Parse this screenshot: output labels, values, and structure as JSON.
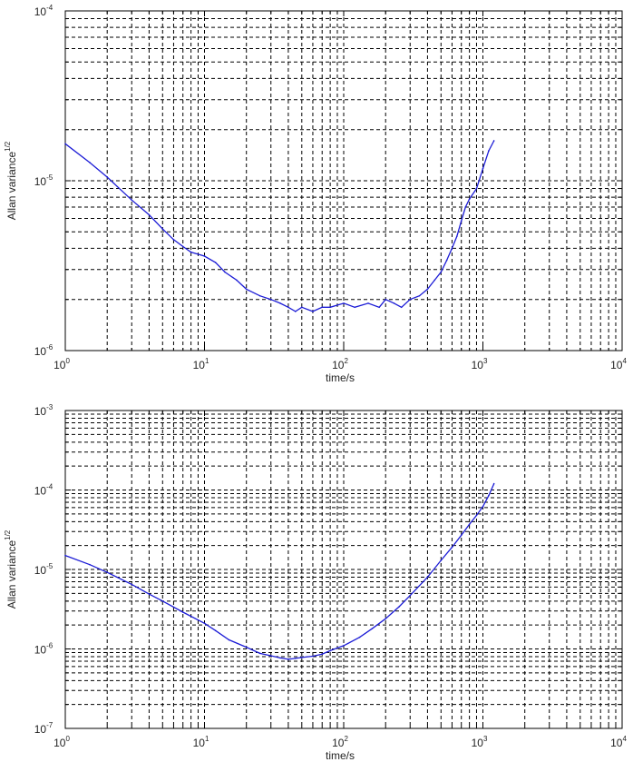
{
  "chart_data": [
    {
      "type": "line",
      "title": "",
      "xlabel": "time/s",
      "ylabel_main": "Allan variance",
      "ylabel_sup": "1/2",
      "x_scale": "log",
      "y_scale": "log",
      "xlim": [
        1,
        10000
      ],
      "ylim": [
        1e-06,
        0.0001
      ],
      "grid": true,
      "x_ticks": [
        {
          "value": 1,
          "base": "10",
          "exp": "0"
        },
        {
          "value": 10,
          "base": "10",
          "exp": "1"
        },
        {
          "value": 100,
          "base": "10",
          "exp": "2"
        },
        {
          "value": 1000,
          "base": "10",
          "exp": "3"
        },
        {
          "value": 10000,
          "base": "10",
          "exp": "4"
        }
      ],
      "y_ticks": [
        {
          "value": 1e-06,
          "base": "10",
          "exp": "-6"
        },
        {
          "value": 1e-05,
          "base": "10",
          "exp": "-5"
        },
        {
          "value": 0.0001,
          "base": "10",
          "exp": "-4"
        }
      ],
      "series": [
        {
          "color": "#1c1cd6",
          "x": [
            1,
            1.5,
            2,
            3,
            4,
            5,
            6,
            7,
            8,
            10,
            12,
            14,
            17,
            20,
            25,
            30,
            35,
            40,
            45,
            50,
            60,
            70,
            80,
            100,
            120,
            150,
            180,
            200,
            230,
            260,
            300,
            350,
            400,
            450,
            500,
            550,
            600,
            650,
            700,
            750,
            800,
            900,
            1000,
            1100,
            1200
          ],
          "y": [
            1.65e-05,
            1.28e-05,
            1.05e-05,
            7.7e-06,
            6.3e-06,
            5.2e-06,
            4.5e-06,
            4.1e-06,
            3.8e-06,
            3.6e-06,
            3.3e-06,
            2.9e-06,
            2.6e-06,
            2.3e-06,
            2.1e-06,
            2e-06,
            1.9e-06,
            1.8e-06,
            1.7e-06,
            1.8e-06,
            1.7e-06,
            1.8e-06,
            1.8e-06,
            1.9e-06,
            1.8e-06,
            1.9e-06,
            1.8e-06,
            2e-06,
            1.9e-06,
            1.8e-06,
            2e-06,
            2.1e-06,
            2.3e-06,
            2.6e-06,
            2.9e-06,
            3.4e-06,
            4e-06,
            4.7e-06,
            5.8e-06,
            7e-06,
            7.8e-06,
            9e-06,
            1.18e-05,
            1.5e-05,
            1.72e-05
          ]
        }
      ]
    },
    {
      "type": "line",
      "title": "",
      "xlabel": "time/s",
      "ylabel_main": "Allan variance",
      "ylabel_sup": "1/2",
      "x_scale": "log",
      "y_scale": "log",
      "xlim": [
        1,
        10000
      ],
      "ylim": [
        1e-07,
        0.001
      ],
      "grid": true,
      "x_ticks": [
        {
          "value": 1,
          "base": "10",
          "exp": "0"
        },
        {
          "value": 10,
          "base": "10",
          "exp": "1"
        },
        {
          "value": 100,
          "base": "10",
          "exp": "2"
        },
        {
          "value": 1000,
          "base": "10",
          "exp": "3"
        },
        {
          "value": 10000,
          "base": "10",
          "exp": "4"
        }
      ],
      "y_ticks": [
        {
          "value": 1e-07,
          "base": "10",
          "exp": "-7"
        },
        {
          "value": 1e-06,
          "base": "10",
          "exp": "-6"
        },
        {
          "value": 1e-05,
          "base": "10",
          "exp": "-5"
        },
        {
          "value": 0.0001,
          "base": "10",
          "exp": "-4"
        },
        {
          "value": 0.001,
          "base": "10",
          "exp": "-3"
        }
      ],
      "series": [
        {
          "color": "#1c1cd6",
          "x": [
            1,
            1.5,
            2,
            3,
            4,
            5,
            7,
            10,
            12,
            15,
            20,
            25,
            30,
            35,
            40,
            45,
            50,
            60,
            70,
            80,
            100,
            130,
            160,
            200,
            250,
            300,
            400,
            500,
            600,
            700,
            800,
            900,
            1000,
            1100,
            1200
          ],
          "y": [
            1.5e-05,
            1.15e-05,
            9.2e-06,
            6.5e-06,
            4.9e-06,
            4e-06,
            2.9e-06,
            2.1e-06,
            1.7e-06,
            1.3e-06,
            1.05e-06,
            8.8e-07,
            8.2e-07,
            7.7e-07,
            7.4e-07,
            7.6e-07,
            7.8e-07,
            8.1e-07,
            8.6e-07,
            9.5e-07,
            1.1e-06,
            1.4e-06,
            1.8e-06,
            2.4e-06,
            3.4e-06,
            4.7e-06,
            8e-06,
            1.3e-05,
            1.9e-05,
            2.7e-05,
            3.7e-05,
            4.8e-05,
            6.2e-05,
            8.5e-05,
            0.00012
          ]
        }
      ]
    }
  ]
}
